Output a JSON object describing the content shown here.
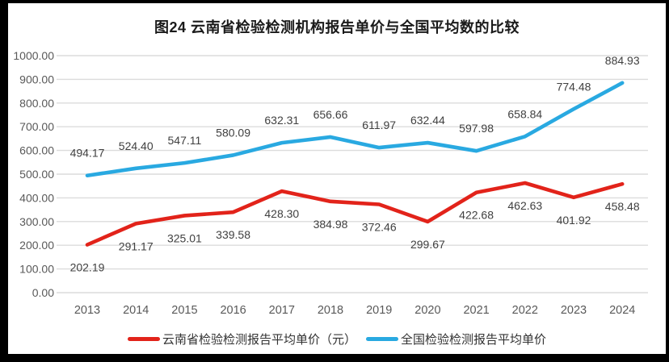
{
  "title": "图24 云南省检验检测机构报告单价与全国平均数的比较",
  "chart_data": {
    "type": "line",
    "title": "图24 云南省检验检测机构报告单价与全国平均数的比较",
    "categories": [
      "2013",
      "2014",
      "2015",
      "2016",
      "2017",
      "2018",
      "2019",
      "2020",
      "2021",
      "2022",
      "2023",
      "2024"
    ],
    "series": [
      {
        "name": "云南省检验检测报告平均单价（元）",
        "color": "#e2231a",
        "label_position": "below",
        "values": [
          202.19,
          291.17,
          325.01,
          339.58,
          428.3,
          384.98,
          372.46,
          299.67,
          422.68,
          462.63,
          401.92,
          458.48
        ]
      },
      {
        "name": "全国检验检测报告平均单价",
        "color": "#29a9e1",
        "label_position": "above",
        "values": [
          494.17,
          524.4,
          547.11,
          580.09,
          632.31,
          656.66,
          611.97,
          632.44,
          597.98,
          658.84,
          774.48,
          884.93
        ]
      }
    ],
    "ylim": [
      0,
      1000
    ],
    "ytick_step": 100,
    "yticks": [
      "1000.00",
      "900.00",
      "800.00",
      "700.00",
      "600.00",
      "500.00",
      "400.00",
      "300.00",
      "200.00",
      "100.00",
      "0.00"
    ],
    "grid": true,
    "legend_position": "bottom",
    "colors": {
      "grid_line": "#dcdcdc",
      "axis_text": "#595959",
      "data_label_text": "#404040",
      "title_text": "#1a1a1a",
      "frame_border": "#000000"
    }
  }
}
